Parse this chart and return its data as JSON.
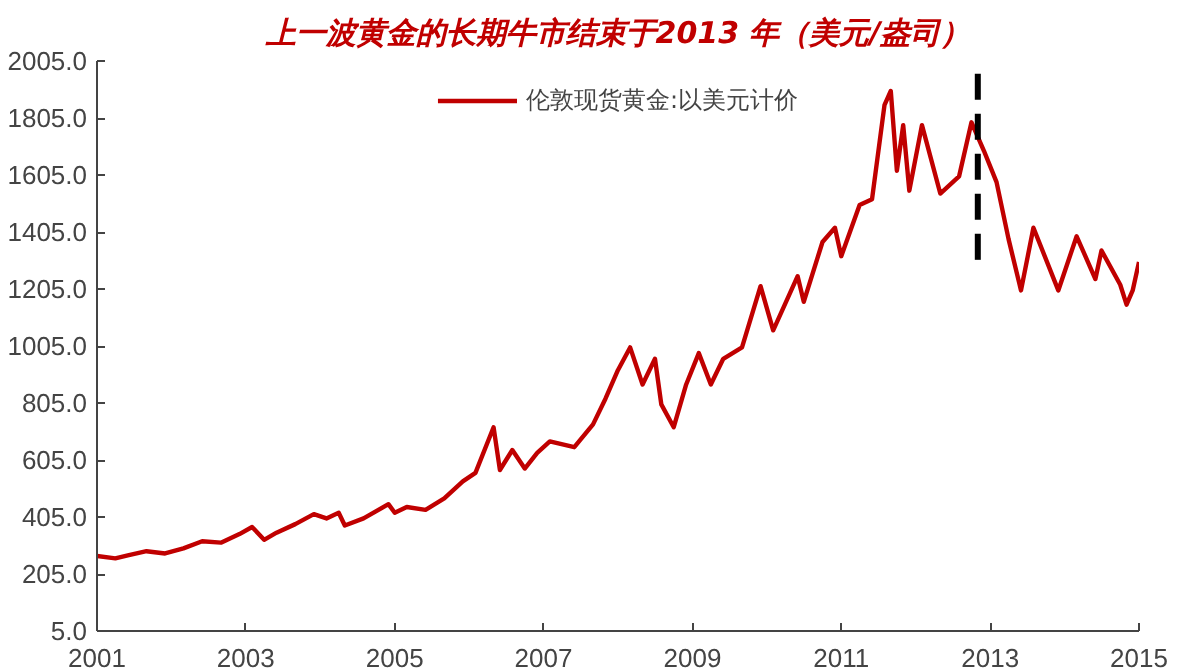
{
  "chart_data": {
    "type": "line",
    "title": "上一波黄金的长期牛市结束于2013 年（美元/盎司）",
    "xlim": [
      "2001-01-01",
      "2015-01-01"
    ],
    "xticks": [
      "2001",
      "2003",
      "2005",
      "2007",
      "2009",
      "2011",
      "2013",
      "2015"
    ],
    "ylim": [
      5,
      2005
    ],
    "yticks": [
      {
        "value": 5,
        "label": "5.0"
      },
      {
        "value": 205,
        "label": "205.0"
      },
      {
        "value": 405,
        "label": "405.0"
      },
      {
        "value": 605,
        "label": "605.0"
      },
      {
        "value": 805,
        "label": "805.0"
      },
      {
        "value": 1005,
        "label": "1005.0"
      },
      {
        "value": 1205,
        "label": "1205.0"
      },
      {
        "value": 1405,
        "label": "1405.0"
      },
      {
        "value": 1605,
        "label": "1605.0"
      },
      {
        "value": 1805,
        "label": "1805.0"
      },
      {
        "value": 2005,
        "label": "2005.0"
      }
    ],
    "grid": false,
    "legend": "top",
    "marker": "none",
    "series": [
      {
        "name": "伦敦现货黄金:以美元计价",
        "color": "#c00000",
        "line_style": "solid",
        "x": [
          "2001-01",
          "2001-04",
          "2001-06",
          "2001-09",
          "2001-12",
          "2002-03",
          "2002-06",
          "2002-09",
          "2002-12",
          "2003-02",
          "2003-04",
          "2003-06",
          "2003-09",
          "2003-12",
          "2004-02",
          "2004-04",
          "2004-05",
          "2004-08",
          "2004-12",
          "2005-01",
          "2005-03",
          "2005-06",
          "2005-09",
          "2005-12",
          "2006-02",
          "2006-05",
          "2006-06",
          "2006-08",
          "2006-10",
          "2006-12",
          "2007-02",
          "2007-06",
          "2007-09",
          "2007-11",
          "2008-01",
          "2008-03",
          "2008-05",
          "2008-07",
          "2008-08",
          "2008-10",
          "2008-12",
          "2009-02",
          "2009-04",
          "2009-06",
          "2009-09",
          "2009-12",
          "2010-02",
          "2010-06",
          "2010-07",
          "2010-10",
          "2010-12",
          "2011-01",
          "2011-04",
          "2011-06",
          "2011-08",
          "2011-09",
          "2011-10",
          "2011-11",
          "2011-12",
          "2012-02",
          "2012-05",
          "2012-08",
          "2012-10",
          "2012-12",
          "2013-02",
          "2013-04",
          "2013-06",
          "2013-08",
          "2013-12",
          "2014-03",
          "2014-06",
          "2014-07",
          "2014-10",
          "2014-11",
          "2014-12",
          "2015-01"
        ],
        "values": [
          268,
          260,
          270,
          285,
          277,
          295,
          320,
          315,
          345,
          370,
          325,
          350,
          380,
          415,
          400,
          420,
          375,
          400,
          450,
          420,
          440,
          430,
          470,
          530,
          560,
          720,
          570,
          640,
          575,
          630,
          670,
          650,
          730,
          820,
          920,
          1000,
          870,
          960,
          800,
          720,
          870,
          980,
          870,
          960,
          1000,
          1215,
          1060,
          1250,
          1160,
          1370,
          1420,
          1320,
          1500,
          1520,
          1850,
          1900,
          1620,
          1780,
          1550,
          1780,
          1540,
          1600,
          1790,
          1690,
          1580,
          1380,
          1200,
          1420,
          1200,
          1390,
          1240,
          1340,
          1220,
          1150,
          1200,
          1300
        ]
      },
      {
        "type": "line",
        "color": "#000000",
        "line_style": "dashed",
        "x": [
          "2012-11",
          "2012-11"
        ],
        "values": [
          1960,
          1295
        ]
      }
    ]
  }
}
